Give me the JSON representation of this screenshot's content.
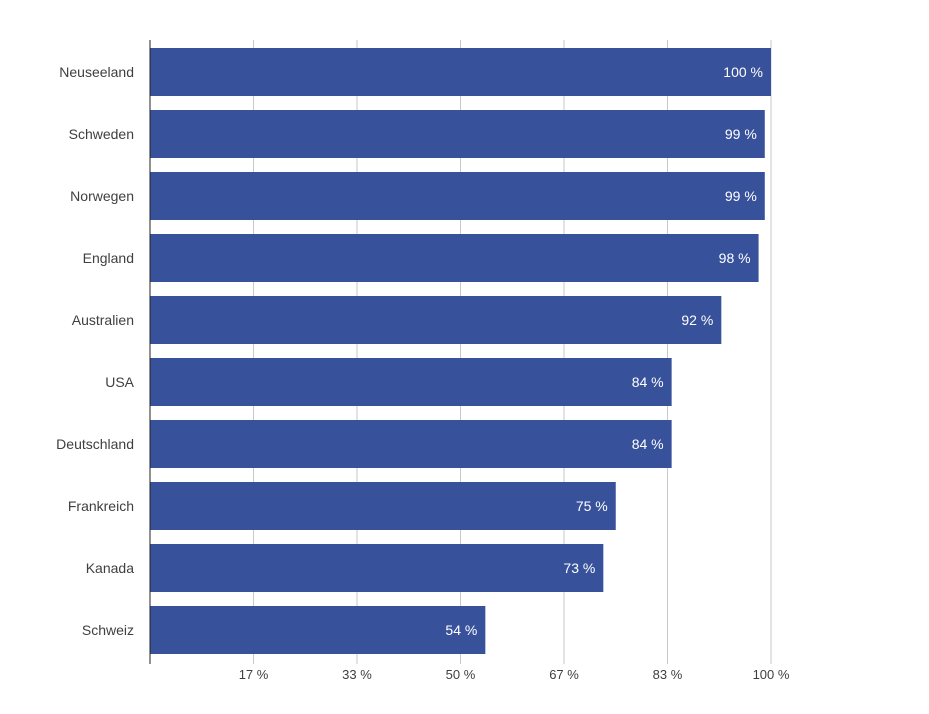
{
  "chart_data": {
    "type": "bar",
    "orientation": "horizontal",
    "categories": [
      "Neuseeland",
      "Schweden",
      "Norwegen",
      "England",
      "Australien",
      "USA",
      "Deutschland",
      "Frankreich",
      "Kanada",
      "Schweiz"
    ],
    "values": [
      100,
      99,
      99,
      98,
      92,
      84,
      84,
      75,
      73,
      54
    ],
    "value_labels": [
      "100 %",
      "99 %",
      "99 %",
      "98 %",
      "92 %",
      "84 %",
      "84 %",
      "75 %",
      "73 %",
      "54 %"
    ],
    "xlim": [
      0,
      100
    ],
    "x_ticks": [
      16.67,
      33.33,
      50,
      66.67,
      83.33,
      100
    ],
    "x_tick_labels": [
      "17 %",
      "33 %",
      "50 %",
      "67 %",
      "83 %",
      "100 %"
    ],
    "grid": true,
    "bar_color": "#38519b",
    "grid_color": "#c8c8c8",
    "axis_color": "#222222"
  }
}
